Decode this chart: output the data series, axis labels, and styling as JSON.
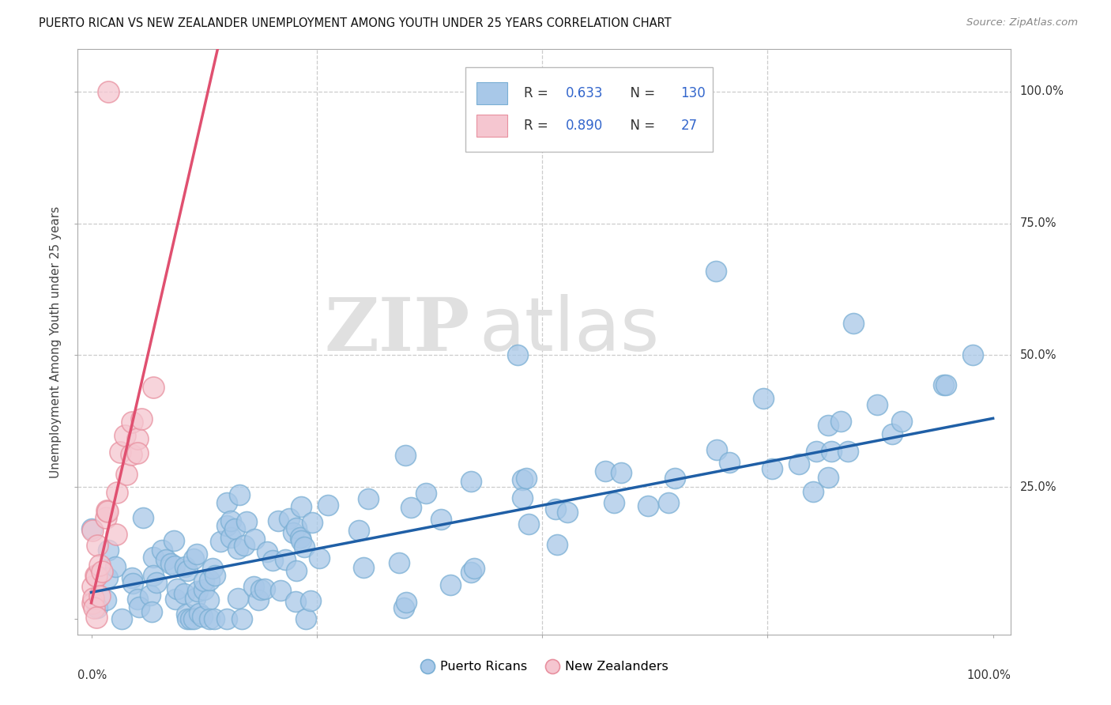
{
  "title": "PUERTO RICAN VS NEW ZEALANDER UNEMPLOYMENT AMONG YOUTH UNDER 25 YEARS CORRELATION CHART",
  "source": "Source: ZipAtlas.com",
  "ylabel": "Unemployment Among Youth under 25 years",
  "watermark_zip": "ZIP",
  "watermark_atlas": "atlas",
  "blue_R": 0.633,
  "blue_N": 130,
  "pink_R": 0.89,
  "pink_N": 27,
  "blue_color": "#a8c8e8",
  "blue_edge_color": "#7aafd4",
  "blue_line_color": "#1f5fa6",
  "pink_color": "#f5c6d0",
  "pink_edge_color": "#e8909f",
  "pink_line_color": "#e05070",
  "legend_blue_label": "Puerto Ricans",
  "legend_pink_label": "New Zealanders",
  "r_n_color": "#3366cc",
  "background_color": "#ffffff"
}
